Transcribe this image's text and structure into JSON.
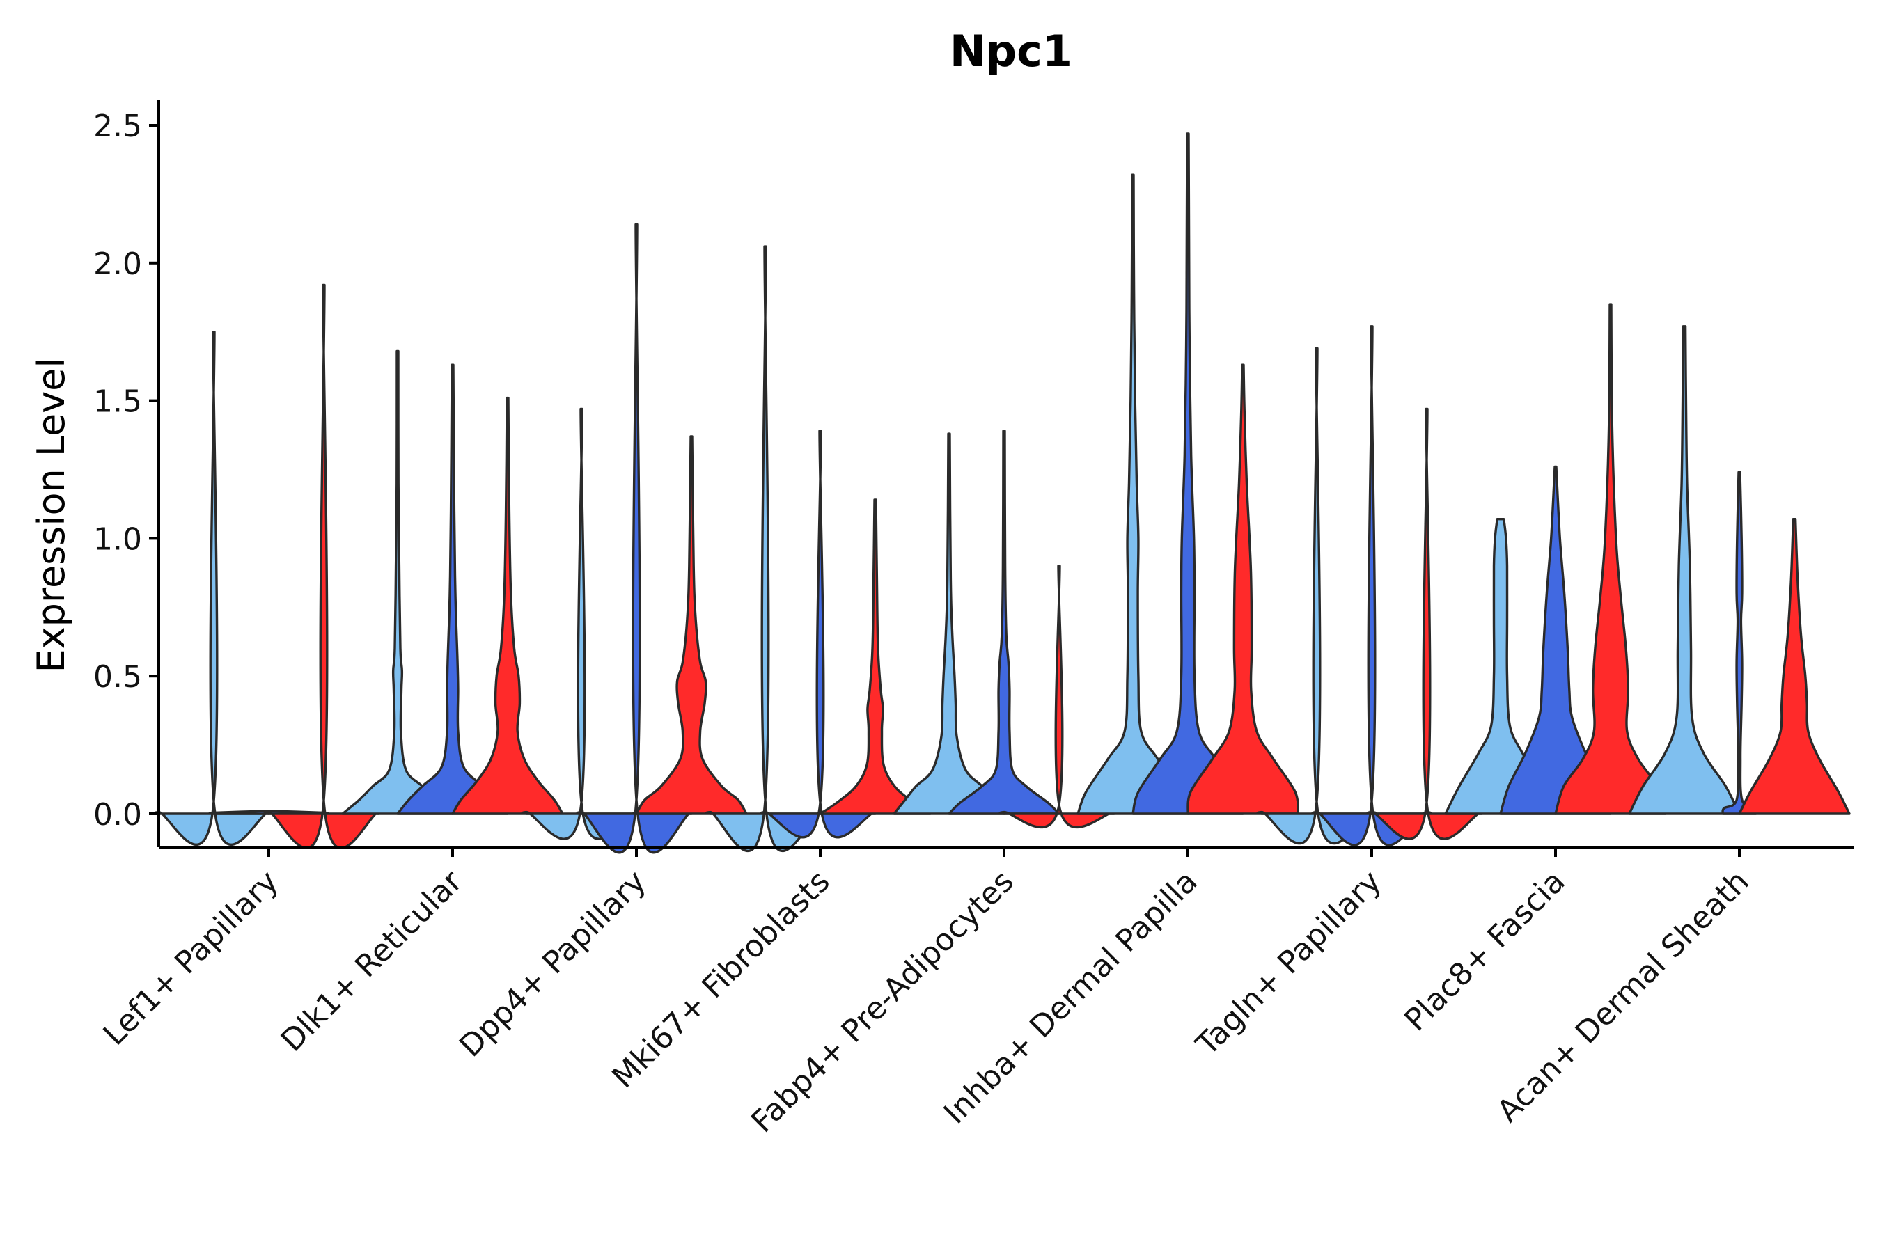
{
  "chart_data": {
    "type": "violin",
    "title": "Npc1",
    "xlabel": "",
    "ylabel": "Expression Level",
    "ylim": [
      -0.12,
      2.6
    ],
    "yticks": [
      "0.0",
      "0.5",
      "1.0",
      "1.5",
      "2.0",
      "2.5"
    ],
    "ytick_values": [
      0,
      0.5,
      1.0,
      1.5,
      2.0,
      2.5
    ],
    "categories": [
      "Lef1+ Papillary",
      "Dlk1+ Reticular",
      "Dpp4+ Papillary",
      "Mki67+ Fibroblasts",
      "Fabp4+ Pre-Adipocytes",
      "Inhba+ Dermal Papilla",
      "Tagln+ Papillary",
      "Plac8+ Fascia",
      "Acan+ Dermal Sheath"
    ],
    "groups": [
      {
        "name": "group-1",
        "color": "#7fbfef"
      },
      {
        "name": "group-2",
        "color": "#4169e1"
      },
      {
        "name": "group-3",
        "color": "#ff2a2a"
      }
    ],
    "violins": [
      [
        {
          "max": 1.75,
          "profile": [
            [
              0,
              1.0
            ],
            [
              0.006,
              1.0
            ],
            [
              0.02,
              0.01
            ],
            [
              1.75,
              0.01
            ]
          ]
        },
        {
          "max": 0.0,
          "profile": [
            [
              0,
              1.0
            ],
            [
              0.004,
              1.0
            ],
            [
              0.01,
              0.01
            ]
          ]
        },
        {
          "max": 1.92,
          "profile": [
            [
              0,
              1.0
            ],
            [
              0.006,
              1.0
            ],
            [
              0.02,
              0.01
            ],
            [
              1.92,
              0.01
            ]
          ]
        }
      ],
      [
        {
          "max": 1.68,
          "profile": [
            [
              0,
              1.0
            ],
            [
              0.05,
              0.7
            ],
            [
              0.1,
              0.45
            ],
            [
              0.16,
              0.15
            ],
            [
              0.3,
              0.06
            ],
            [
              0.45,
              0.07
            ],
            [
              0.52,
              0.08
            ],
            [
              0.6,
              0.05
            ],
            [
              0.9,
              0.03
            ],
            [
              1.2,
              0.015
            ],
            [
              1.68,
              0.01
            ]
          ]
        },
        {
          "max": 1.63,
          "profile": [
            [
              0,
              1.0
            ],
            [
              0.05,
              0.8
            ],
            [
              0.1,
              0.55
            ],
            [
              0.17,
              0.2
            ],
            [
              0.3,
              0.1
            ],
            [
              0.45,
              0.1
            ],
            [
              0.55,
              0.09
            ],
            [
              0.8,
              0.05
            ],
            [
              1.1,
              0.03
            ],
            [
              1.63,
              0.01
            ]
          ]
        },
        {
          "max": 1.51,
          "profile": [
            [
              0,
              1.0
            ],
            [
              0.05,
              0.85
            ],
            [
              0.12,
              0.55
            ],
            [
              0.2,
              0.3
            ],
            [
              0.3,
              0.18
            ],
            [
              0.4,
              0.22
            ],
            [
              0.5,
              0.2
            ],
            [
              0.6,
              0.12
            ],
            [
              0.8,
              0.06
            ],
            [
              1.1,
              0.03
            ],
            [
              1.51,
              0.01
            ]
          ]
        }
      ],
      [
        {
          "max": 1.47,
          "profile": [
            [
              0,
              1.0
            ],
            [
              0.006,
              1.0
            ],
            [
              0.02,
              0.01
            ],
            [
              1.47,
              0.01
            ]
          ]
        },
        {
          "max": 2.14,
          "profile": [
            [
              0,
              1.0
            ],
            [
              0.006,
              1.0
            ],
            [
              0.02,
              0.01
            ],
            [
              2.14,
              0.01
            ]
          ]
        },
        {
          "max": 1.37,
          "profile": [
            [
              0,
              1.0
            ],
            [
              0.05,
              0.85
            ],
            [
              0.1,
              0.55
            ],
            [
              0.2,
              0.2
            ],
            [
              0.3,
              0.16
            ],
            [
              0.4,
              0.24
            ],
            [
              0.48,
              0.26
            ],
            [
              0.55,
              0.16
            ],
            [
              0.7,
              0.08
            ],
            [
              0.9,
              0.04
            ],
            [
              1.37,
              0.01
            ]
          ]
        }
      ],
      [
        {
          "max": 2.06,
          "profile": [
            [
              0,
              1.0
            ],
            [
              0.006,
              1.0
            ],
            [
              0.02,
              0.01
            ],
            [
              2.06,
              0.01
            ]
          ]
        },
        {
          "max": 1.39,
          "profile": [
            [
              0,
              1.0
            ],
            [
              0.006,
              1.0
            ],
            [
              0.02,
              0.01
            ],
            [
              1.39,
              0.01
            ]
          ]
        },
        {
          "max": 1.14,
          "profile": [
            [
              0,
              1.0
            ],
            [
              0.04,
              0.7
            ],
            [
              0.1,
              0.35
            ],
            [
              0.18,
              0.15
            ],
            [
              0.3,
              0.12
            ],
            [
              0.38,
              0.14
            ],
            [
              0.45,
              0.1
            ],
            [
              0.6,
              0.05
            ],
            [
              0.85,
              0.03
            ],
            [
              1.14,
              0.01
            ]
          ]
        }
      ],
      [
        {
          "max": 1.38,
          "profile": [
            [
              0,
              1.0
            ],
            [
              0.05,
              0.8
            ],
            [
              0.1,
              0.6
            ],
            [
              0.16,
              0.3
            ],
            [
              0.28,
              0.14
            ],
            [
              0.4,
              0.12
            ],
            [
              0.5,
              0.1
            ],
            [
              0.65,
              0.06
            ],
            [
              0.85,
              0.03
            ],
            [
              1.38,
              0.01
            ]
          ]
        },
        {
          "max": 1.39,
          "profile": [
            [
              0,
              1.0
            ],
            [
              0.04,
              0.8
            ],
            [
              0.1,
              0.4
            ],
            [
              0.16,
              0.15
            ],
            [
              0.3,
              0.1
            ],
            [
              0.45,
              0.1
            ],
            [
              0.55,
              0.08
            ],
            [
              0.65,
              0.04
            ],
            [
              0.9,
              0.02
            ],
            [
              1.39,
              0.01
            ]
          ]
        },
        {
          "max": 0.9,
          "profile": [
            [
              0,
              1.0
            ],
            [
              0.006,
              1.0
            ],
            [
              0.02,
              0.01
            ],
            [
              0.9,
              0.01
            ]
          ]
        }
      ],
      [
        {
          "max": 2.32,
          "profile": [
            [
              0,
              1.0
            ],
            [
              0.08,
              0.85
            ],
            [
              0.2,
              0.45
            ],
            [
              0.3,
              0.15
            ],
            [
              0.5,
              0.1
            ],
            [
              0.8,
              0.09
            ],
            [
              1.0,
              0.1
            ],
            [
              1.2,
              0.07
            ],
            [
              1.5,
              0.04
            ],
            [
              1.9,
              0.02
            ],
            [
              2.32,
              0.01
            ]
          ]
        },
        {
          "max": 2.47,
          "profile": [
            [
              0,
              1.0
            ],
            [
              0.08,
              0.9
            ],
            [
              0.2,
              0.5
            ],
            [
              0.3,
              0.2
            ],
            [
              0.5,
              0.12
            ],
            [
              0.8,
              0.12
            ],
            [
              1.0,
              0.11
            ],
            [
              1.3,
              0.06
            ],
            [
              1.7,
              0.03
            ],
            [
              2.1,
              0.02
            ],
            [
              2.47,
              0.01
            ]
          ]
        },
        {
          "max": 1.63,
          "profile": [
            [
              0,
              1.0
            ],
            [
              0.08,
              0.95
            ],
            [
              0.2,
              0.55
            ],
            [
              0.3,
              0.25
            ],
            [
              0.45,
              0.15
            ],
            [
              0.6,
              0.16
            ],
            [
              0.85,
              0.15
            ],
            [
              1.0,
              0.12
            ],
            [
              1.2,
              0.07
            ],
            [
              1.45,
              0.03
            ],
            [
              1.63,
              0.01
            ]
          ]
        }
      ],
      [
        {
          "max": 1.69,
          "profile": [
            [
              0,
              1.0
            ],
            [
              0.006,
              1.0
            ],
            [
              0.02,
              0.01
            ],
            [
              1.69,
              0.01
            ]
          ]
        },
        {
          "max": 1.77,
          "profile": [
            [
              0,
              1.0
            ],
            [
              0.006,
              1.0
            ],
            [
              0.02,
              0.01
            ],
            [
              1.77,
              0.01
            ]
          ]
        },
        {
          "max": 1.47,
          "profile": [
            [
              0,
              1.0
            ],
            [
              0.006,
              1.0
            ],
            [
              0.02,
              0.01
            ],
            [
              1.47,
              0.01
            ]
          ]
        }
      ],
      [
        {
          "max": 1.07,
          "profile": [
            [
              0,
              1.0
            ],
            [
              0.1,
              0.75
            ],
            [
              0.22,
              0.4
            ],
            [
              0.32,
              0.17
            ],
            [
              0.5,
              0.12
            ],
            [
              0.7,
              0.12
            ],
            [
              0.9,
              0.12
            ],
            [
              1.0,
              0.1
            ],
            [
              1.07,
              0.06
            ]
          ]
        },
        {
          "max": 1.26,
          "profile": [
            [
              0,
              1.0
            ],
            [
              0.1,
              0.85
            ],
            [
              0.22,
              0.55
            ],
            [
              0.35,
              0.3
            ],
            [
              0.45,
              0.25
            ],
            [
              0.6,
              0.22
            ],
            [
              0.8,
              0.16
            ],
            [
              1.0,
              0.08
            ],
            [
              1.26,
              0.01
            ]
          ]
        },
        {
          "max": 1.85,
          "profile": [
            [
              0,
              1.0
            ],
            [
              0.1,
              0.85
            ],
            [
              0.2,
              0.5
            ],
            [
              0.3,
              0.3
            ],
            [
              0.45,
              0.32
            ],
            [
              0.6,
              0.28
            ],
            [
              0.8,
              0.18
            ],
            [
              1.0,
              0.1
            ],
            [
              1.4,
              0.03
            ],
            [
              1.85,
              0.01
            ]
          ]
        }
      ],
      [
        {
          "max": 1.77,
          "profile": [
            [
              0,
              1.0
            ],
            [
              0.1,
              0.75
            ],
            [
              0.22,
              0.35
            ],
            [
              0.35,
              0.14
            ],
            [
              0.6,
              0.12
            ],
            [
              0.9,
              0.1
            ],
            [
              1.2,
              0.05
            ],
            [
              1.5,
              0.03
            ],
            [
              1.77,
              0.02
            ]
          ]
        },
        {
          "max": 1.24,
          "profile": [
            [
              0,
              0.3
            ],
            [
              0.02,
              0.28
            ],
            [
              0.05,
              0.05
            ],
            [
              0.2,
              0.02
            ],
            [
              0.4,
              0.04
            ],
            [
              0.55,
              0.05
            ],
            [
              0.7,
              0.03
            ],
            [
              0.8,
              0.05
            ],
            [
              1.0,
              0.04
            ],
            [
              1.24,
              0.01
            ]
          ]
        },
        {
          "max": 1.07,
          "profile": [
            [
              0,
              1.0
            ],
            [
              0.08,
              0.8
            ],
            [
              0.2,
              0.45
            ],
            [
              0.3,
              0.25
            ],
            [
              0.4,
              0.23
            ],
            [
              0.5,
              0.2
            ],
            [
              0.65,
              0.12
            ],
            [
              0.85,
              0.06
            ],
            [
              1.07,
              0.02
            ]
          ]
        }
      ]
    ]
  }
}
